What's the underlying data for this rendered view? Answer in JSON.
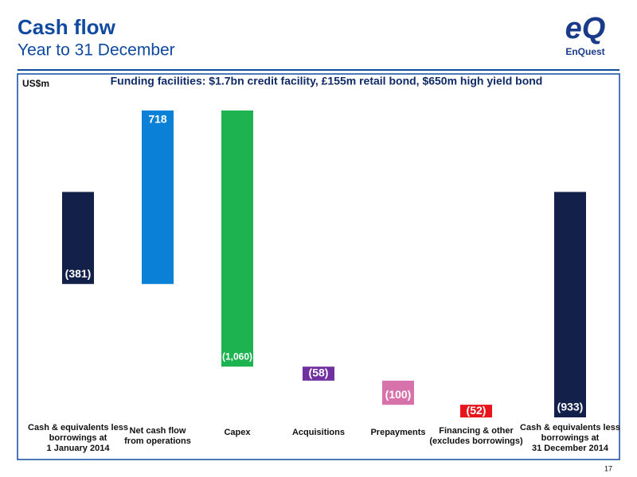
{
  "header": {
    "title": "Cash flow",
    "subtitle": "Year to 31 December",
    "logo_mark": "eQ",
    "logo_text": "EnQuest"
  },
  "page_number": "17",
  "chart_data": {
    "type": "waterfall",
    "unit_label": "US$m",
    "title": "Funding facilities: $1.7bn credit facility, £155m retail bond, $650m high yield bond",
    "categories": [
      "Cash & equivalents less\nborrowings at\n1 January  2014",
      "Net cash flow\nfrom operations",
      "Capex",
      "Acquisitions",
      "Prepayments",
      "Financing & other\n(excludes borrowings)",
      "Cash & equivalents less\nborrowings at\n31 December  2014"
    ],
    "values": [
      -381,
      718,
      -1060,
      -58,
      -100,
      -52,
      -933
    ],
    "value_labels": [
      "(381)",
      "718",
      "(1,060)",
      "(58)",
      "(100)",
      "(52)",
      "(933)"
    ],
    "colors": [
      "#13214a",
      "#0a80d6",
      "#1db350",
      "#7030a0",
      "#d872aa",
      "#e8141c",
      "#13214a"
    ]
  }
}
